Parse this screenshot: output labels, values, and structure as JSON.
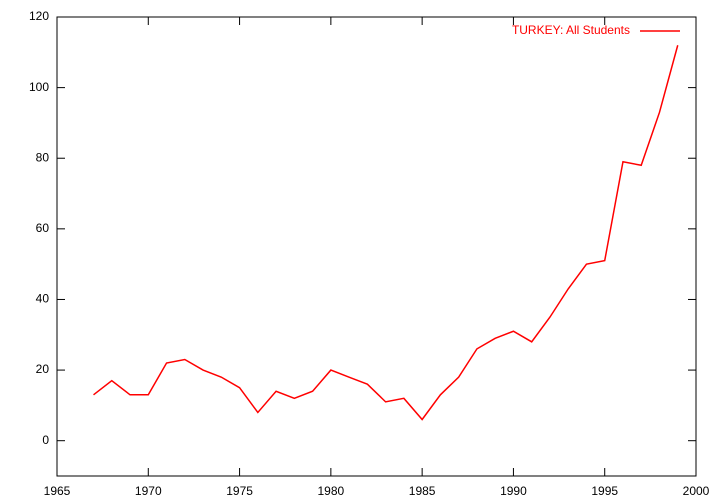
{
  "chart_data": {
    "type": "line",
    "x": [
      1967,
      1968,
      1969,
      1970,
      1971,
      1972,
      1973,
      1974,
      1975,
      1976,
      1977,
      1978,
      1979,
      1980,
      1981,
      1982,
      1983,
      1984,
      1985,
      1986,
      1987,
      1988,
      1989,
      1990,
      1991,
      1992,
      1993,
      1994,
      1995,
      1996,
      1997,
      1998,
      1999
    ],
    "series": [
      {
        "name": "TURKEY: All Students",
        "color": "#ff0000",
        "values": [
          13,
          17,
          13,
          13,
          22,
          23,
          20,
          18,
          15,
          8,
          14,
          12,
          14,
          20,
          18,
          16,
          11,
          12,
          6,
          13,
          18,
          26,
          29,
          31,
          28,
          35,
          43,
          50,
          51,
          79,
          78,
          93,
          112
        ]
      }
    ],
    "xlim": [
      1965,
      2000
    ],
    "xticks": [
      1965,
      1970,
      1975,
      1980,
      1985,
      1990,
      1995,
      2000
    ],
    "ylim": [
      -10,
      120
    ],
    "yticks": [
      0,
      20,
      40,
      60,
      80,
      100,
      120
    ],
    "legend": "top-right"
  }
}
